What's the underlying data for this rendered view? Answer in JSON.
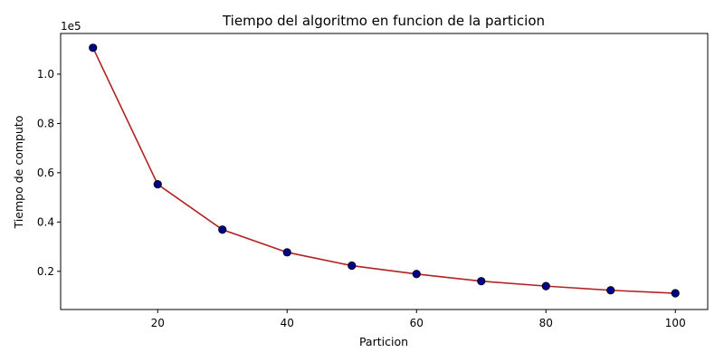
{
  "chart_data": {
    "type": "line",
    "title": "Tiempo del algoritmo en funcion de la particion",
    "xlabel": "Particion",
    "ylabel": "Tiempo de computo",
    "y_scale_label": "1e5",
    "y_multiplier": 100000,
    "xlim": [
      5,
      105
    ],
    "ylim": [
      4500,
      116500
    ],
    "x_ticks": [
      20,
      40,
      60,
      80,
      100
    ],
    "x_tick_labels": [
      "20",
      "40",
      "60",
      "80",
      "100"
    ],
    "y_ticks": [
      20000,
      40000,
      60000,
      80000,
      100000
    ],
    "y_tick_labels": [
      "0.2",
      "0.4",
      "0.6",
      "0.8",
      "1.0"
    ],
    "grid": false,
    "series": [
      {
        "x": [
          10,
          20,
          30,
          40,
          50,
          60,
          70,
          80,
          90,
          100
        ],
        "y": [
          110700,
          55300,
          36900,
          27700,
          22300,
          18900,
          16000,
          14000,
          12300,
          11100
        ],
        "line_color": "#b22222",
        "marker_color": "#00008b"
      }
    ]
  }
}
